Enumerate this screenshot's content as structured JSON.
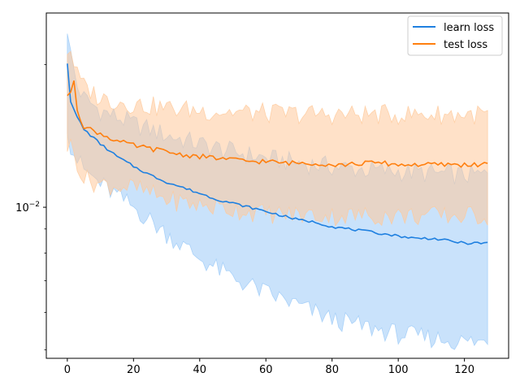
{
  "chart_data": {
    "type": "line",
    "title": "",
    "xlabel": "",
    "ylabel": "",
    "xlim": [
      -6.35,
      133.35
    ],
    "ylim": [
      0.0048,
      0.0257
    ],
    "yscale": "log",
    "x_ticks": [
      0,
      20,
      40,
      60,
      80,
      100,
      120
    ],
    "y_ticks": [
      {
        "value": 0.01,
        "label": "10−2"
      }
    ],
    "grid": false,
    "legend": {
      "position": "top-right",
      "entries": [
        "learn loss",
        "test loss"
      ]
    },
    "colors": {
      "learn": "#1f80e0",
      "test": "#ff7f0e",
      "learn_band": "#9ccbf7",
      "test_band": "#ffc99a"
    },
    "series": [
      {
        "name": "learn loss",
        "color": "#1f80e0",
        "points": [
          [
            0,
            0.0201
          ],
          [
            1,
            0.0167
          ],
          [
            3,
            0.0155
          ],
          [
            5,
            0.0146
          ],
          [
            8,
            0.014
          ],
          [
            10,
            0.0136
          ],
          [
            15,
            0.0128
          ],
          [
            20,
            0.0122
          ],
          [
            25,
            0.0117
          ],
          [
            30,
            0.0113
          ],
          [
            35,
            0.011
          ],
          [
            40,
            0.0107
          ],
          [
            45,
            0.0104
          ],
          [
            50,
            0.0102
          ],
          [
            55,
            0.01
          ],
          [
            60,
            0.0098
          ],
          [
            65,
            0.0096
          ],
          [
            70,
            0.0094
          ],
          [
            75,
            0.0093
          ],
          [
            80,
            0.0091
          ],
          [
            85,
            0.009
          ],
          [
            90,
            0.0089
          ],
          [
            95,
            0.0088
          ],
          [
            100,
            0.0087
          ],
          [
            105,
            0.0086
          ],
          [
            110,
            0.0086
          ],
          [
            115,
            0.0085
          ],
          [
            120,
            0.0084
          ],
          [
            127,
            0.0084
          ]
        ],
        "band_upper": [
          [
            0,
            0.024
          ],
          [
            1,
            0.021
          ],
          [
            3,
            0.018
          ],
          [
            5,
            0.017
          ],
          [
            10,
            0.016
          ],
          [
            20,
            0.015
          ],
          [
            30,
            0.0142
          ],
          [
            40,
            0.0136
          ],
          [
            50,
            0.0131
          ],
          [
            60,
            0.0127
          ],
          [
            70,
            0.0124
          ],
          [
            80,
            0.0122
          ],
          [
            90,
            0.012
          ],
          [
            100,
            0.0119
          ],
          [
            110,
            0.0118
          ],
          [
            120,
            0.0117
          ],
          [
            127,
            0.0117
          ]
        ],
        "band_lower": [
          [
            0,
            0.015
          ],
          [
            1,
            0.0135
          ],
          [
            3,
            0.0126
          ],
          [
            5,
            0.012
          ],
          [
            10,
            0.0112
          ],
          [
            20,
            0.01
          ],
          [
            30,
            0.0088
          ],
          [
            40,
            0.0078
          ],
          [
            50,
            0.0071
          ],
          [
            60,
            0.0066
          ],
          [
            70,
            0.0062
          ],
          [
            80,
            0.0058
          ],
          [
            90,
            0.0056
          ],
          [
            100,
            0.0054
          ],
          [
            110,
            0.0053
          ],
          [
            120,
            0.0052
          ],
          [
            127,
            0.0052
          ]
        ]
      },
      {
        "name": "test loss",
        "color": "#ff7f0e",
        "points": [
          [
            0,
            0.0172
          ],
          [
            1,
            0.0175
          ],
          [
            2,
            0.0185
          ],
          [
            3,
            0.016
          ],
          [
            5,
            0.0148
          ],
          [
            8,
            0.0145
          ],
          [
            10,
            0.0143
          ],
          [
            12,
            0.0141
          ],
          [
            15,
            0.0138
          ],
          [
            20,
            0.0135
          ],
          [
            25,
            0.0133
          ],
          [
            30,
            0.0131
          ],
          [
            35,
            0.0129
          ],
          [
            40,
            0.0128
          ],
          [
            45,
            0.0127
          ],
          [
            50,
            0.0126
          ],
          [
            55,
            0.0125
          ],
          [
            60,
            0.0125
          ],
          [
            65,
            0.0124
          ],
          [
            70,
            0.0124
          ],
          [
            75,
            0.0124
          ],
          [
            80,
            0.0123
          ],
          [
            85,
            0.0123
          ],
          [
            90,
            0.0124
          ],
          [
            95,
            0.0124
          ],
          [
            100,
            0.0123
          ],
          [
            105,
            0.0123
          ],
          [
            110,
            0.0123
          ],
          [
            115,
            0.0123
          ],
          [
            120,
            0.0123
          ],
          [
            127,
            0.0123
          ]
        ],
        "band_upper": [
          [
            0,
            0.0215
          ],
          [
            1,
            0.0215
          ],
          [
            3,
            0.019
          ],
          [
            5,
            0.018
          ],
          [
            10,
            0.017
          ],
          [
            20,
            0.0165
          ],
          [
            30,
            0.0162
          ],
          [
            40,
            0.016
          ],
          [
            60,
            0.0158
          ],
          [
            80,
            0.0157
          ],
          [
            100,
            0.0157
          ],
          [
            127,
            0.0157
          ]
        ],
        "band_lower": [
          [
            0,
            0.0135
          ],
          [
            1,
            0.0135
          ],
          [
            3,
            0.0125
          ],
          [
            5,
            0.0115
          ],
          [
            10,
            0.0112
          ],
          [
            20,
            0.011
          ],
          [
            30,
            0.0104
          ],
          [
            40,
            0.0101
          ],
          [
            50,
            0.0099
          ],
          [
            60,
            0.0097
          ],
          [
            80,
            0.0096
          ],
          [
            100,
            0.0096
          ],
          [
            127,
            0.0096
          ]
        ]
      }
    ]
  }
}
